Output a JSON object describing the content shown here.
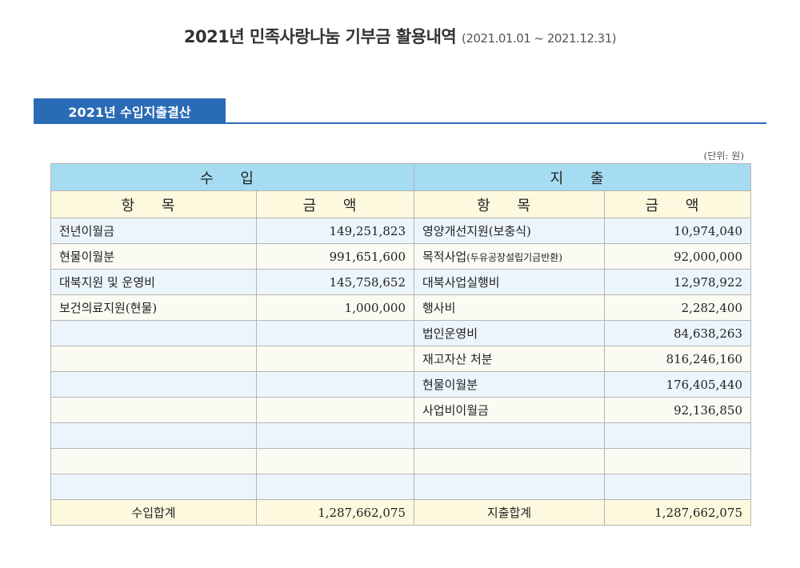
{
  "page": {
    "title": "2021년 민족사랑나눔 기부금 활용내역",
    "period": "(2021.01.01 ~ 2021.12.31)",
    "section_title": "2021년 수입지출결산",
    "unit": "(단위: 원)"
  },
  "table": {
    "income_header": "수 입",
    "expense_header": "지 출",
    "col_item": "항 목",
    "col_amount": "금 액",
    "rows": [
      {
        "in_item": "전년이월금",
        "in_amount": "149,251,823",
        "out_item": "영양개선지원(보충식)",
        "out_note": "",
        "out_amount": "10,974,040"
      },
      {
        "in_item": "현물이월분",
        "in_amount": "991,651,600",
        "out_item": "목적사업",
        "out_note": "(두유공장설립기금반환)",
        "out_amount": "92,000,000"
      },
      {
        "in_item": "대북지원 및 운영비",
        "in_amount": "145,758,652",
        "out_item": "대북사업실행비",
        "out_note": "",
        "out_amount": "12,978,922"
      },
      {
        "in_item": "보건의료지원(현물)",
        "in_amount": "1,000,000",
        "out_item": "행사비",
        "out_note": "",
        "out_amount": "2,282,400"
      },
      {
        "in_item": "",
        "in_amount": "",
        "out_item": "법인운영비",
        "out_note": "",
        "out_amount": "84,638,263"
      },
      {
        "in_item": "",
        "in_amount": "",
        "out_item": "재고자산 처분",
        "out_note": "",
        "out_amount": "816,246,160"
      },
      {
        "in_item": "",
        "in_amount": "",
        "out_item": "현물이월분",
        "out_note": "",
        "out_amount": "176,405,440"
      },
      {
        "in_item": "",
        "in_amount": "",
        "out_item": "사업비이월금",
        "out_note": "",
        "out_amount": "92,136,850"
      },
      {
        "in_item": "",
        "in_amount": "",
        "out_item": "",
        "out_note": "",
        "out_amount": ""
      },
      {
        "in_item": "",
        "in_amount": "",
        "out_item": "",
        "out_note": "",
        "out_amount": ""
      },
      {
        "in_item": "",
        "in_amount": "",
        "out_item": "",
        "out_note": "",
        "out_amount": ""
      }
    ],
    "totals": {
      "in_label": "수입합계",
      "in_amount": "1,287,662,075",
      "out_label": "지출합계",
      "out_amount": "1,287,662,075"
    }
  }
}
